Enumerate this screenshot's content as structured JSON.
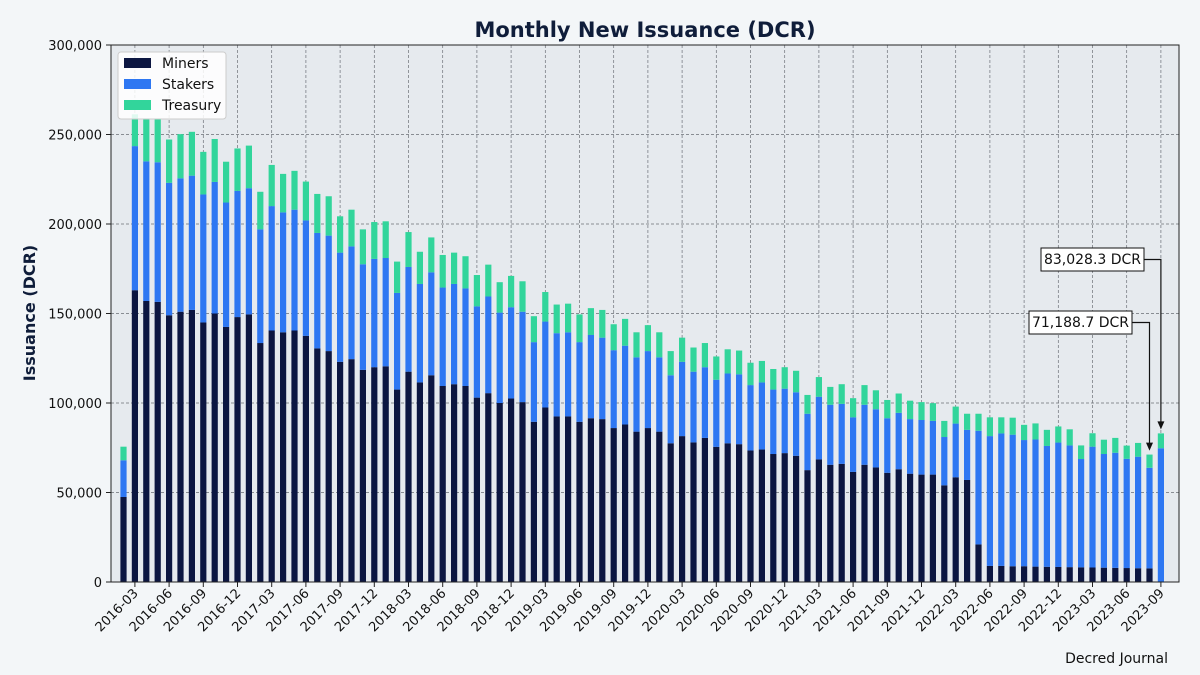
{
  "chart_data": {
    "type": "bar",
    "stacked": true,
    "title": "Monthly New Issuance (DCR)",
    "xlabel": "",
    "ylabel": "Issuance (DCR)",
    "ylim": [
      0,
      300000
    ],
    "yticks": [
      0,
      50000,
      100000,
      150000,
      200000,
      250000,
      300000
    ],
    "ytick_labels": [
      "0",
      "50,000",
      "100,000",
      "150,000",
      "200,000",
      "250,000",
      "300,000"
    ],
    "xtick_labels": [
      "2016-03",
      "2016-06",
      "2016-09",
      "2016-12",
      "2017-03",
      "2017-06",
      "2017-09",
      "2017-12",
      "2018-03",
      "2018-06",
      "2018-09",
      "2018-12",
      "2019-03",
      "2019-06",
      "2019-09",
      "2019-12",
      "2020-03",
      "2020-06",
      "2020-09",
      "2020-12",
      "2021-03",
      "2021-06",
      "2021-09",
      "2021-12",
      "2022-03",
      "2022-06",
      "2022-09",
      "2022-12",
      "2023-03",
      "2023-06",
      "2023-09"
    ],
    "grid": true,
    "legend_position": "top-left",
    "categories": [
      "2016-02",
      "2016-03",
      "2016-04",
      "2016-05",
      "2016-06",
      "2016-07",
      "2016-08",
      "2016-09",
      "2016-10",
      "2016-11",
      "2016-12",
      "2017-01",
      "2017-02",
      "2017-03",
      "2017-04",
      "2017-05",
      "2017-06",
      "2017-07",
      "2017-08",
      "2017-09",
      "2017-10",
      "2017-11",
      "2017-12",
      "2018-01",
      "2018-02",
      "2018-03",
      "2018-04",
      "2018-05",
      "2018-06",
      "2018-07",
      "2018-08",
      "2018-09",
      "2018-10",
      "2018-11",
      "2018-12",
      "2019-01",
      "2019-02",
      "2019-03",
      "2019-04",
      "2019-05",
      "2019-06",
      "2019-07",
      "2019-08",
      "2019-09",
      "2019-10",
      "2019-11",
      "2019-12",
      "2020-01",
      "2020-02",
      "2020-03",
      "2020-04",
      "2020-05",
      "2020-06",
      "2020-07",
      "2020-08",
      "2020-09",
      "2020-10",
      "2020-11",
      "2020-12",
      "2021-01",
      "2021-02",
      "2021-03",
      "2021-04",
      "2021-05",
      "2021-06",
      "2021-07",
      "2021-08",
      "2021-09",
      "2021-10",
      "2021-11",
      "2021-12",
      "2022-01",
      "2022-02",
      "2022-03",
      "2022-04",
      "2022-05",
      "2022-06",
      "2022-07",
      "2022-08",
      "2022-09",
      "2022-10",
      "2022-11",
      "2022-12",
      "2023-01",
      "2023-02",
      "2023-03",
      "2023-04",
      "2023-05",
      "2023-06",
      "2023-07",
      "2023-08",
      "2023-09"
    ],
    "series": [
      {
        "name": "Miners",
        "color": "#0c1641",
        "values": [
          47500,
          163000,
          157000,
          156500,
          149000,
          151000,
          152000,
          145000,
          150000,
          142500,
          148000,
          149500,
          133500,
          140500,
          139500,
          140500,
          137500,
          130500,
          129000,
          123000,
          124500,
          118500,
          120000,
          120500,
          107500,
          117500,
          111500,
          115500,
          109500,
          110500,
          109500,
          103000,
          105500,
          100000,
          102500,
          100500,
          89500,
          97500,
          92500,
          92500,
          89500,
          91500,
          91000,
          86000,
          88000,
          84000,
          86000,
          84000,
          77500,
          81500,
          78000,
          80500,
          75500,
          77500,
          77000,
          73500,
          74000,
          71500,
          72000,
          70500,
          62500,
          68500,
          65500,
          66000,
          61500,
          65500,
          64000,
          61000,
          63000,
          60500,
          60000,
          60000,
          54000,
          58500,
          57000,
          21000,
          9000,
          9000,
          8800,
          8800,
          8600,
          8500,
          8400,
          8300,
          8200,
          8100,
          8000,
          7900,
          7800,
          7700,
          7600,
          0
        ]
      },
      {
        "name": "Stakers",
        "color": "#2e77f2",
        "values": [
          20500,
          80500,
          78000,
          78000,
          74000,
          74500,
          75000,
          71500,
          73500,
          69500,
          70500,
          70500,
          63500,
          69500,
          67000,
          67500,
          64500,
          64500,
          64500,
          61000,
          63000,
          59000,
          60500,
          60500,
          54000,
          58500,
          55000,
          57500,
          55000,
          56000,
          54500,
          51000,
          54000,
          50500,
          51000,
          50500,
          44500,
          48000,
          46500,
          47000,
          44500,
          46500,
          45500,
          43500,
          44000,
          41500,
          43000,
          41500,
          38000,
          41500,
          39500,
          39500,
          37500,
          39000,
          39000,
          36500,
          37500,
          36000,
          36000,
          35500,
          31500,
          35000,
          33500,
          33500,
          30500,
          33500,
          32500,
          30500,
          31500,
          30500,
          30500,
          30000,
          27000,
          30000,
          28000,
          63500,
          72500,
          74000,
          73500,
          70500,
          71000,
          67500,
          69500,
          68000,
          60500,
          67500,
          63500,
          64300,
          61000,
          62300,
          56200,
          74725
        ]
      },
      {
        "name": "Treasury",
        "color": "#32d59b",
        "values": [
          7600,
          17800,
          24000,
          24000,
          24200,
          24700,
          24500,
          23800,
          24000,
          22800,
          23700,
          23800,
          21000,
          23000,
          21500,
          21700,
          21700,
          21800,
          22000,
          20300,
          20500,
          19500,
          20600,
          20500,
          17500,
          19500,
          18000,
          19500,
          18200,
          17500,
          18000,
          17500,
          17800,
          17000,
          17500,
          17000,
          14500,
          16500,
          16000,
          16000,
          15500,
          15000,
          15500,
          14500,
          15000,
          14000,
          14500,
          14000,
          13500,
          13500,
          13500,
          13500,
          13000,
          13500,
          13300,
          12500,
          12000,
          11500,
          12000,
          12000,
          10500,
          11000,
          10000,
          11000,
          10700,
          11000,
          10600,
          10200,
          10800,
          10300,
          10000,
          9900,
          9000,
          9500,
          9000,
          9500,
          10500,
          9000,
          9500,
          8500,
          9000,
          9000,
          9000,
          9000,
          7600,
          7500,
          8000,
          8300,
          7400,
          7700,
          7388,
          8303
        ]
      }
    ],
    "annotations": [
      {
        "text": "83,028.3 DCR",
        "category": "2023-09",
        "value": 83028.3
      },
      {
        "text": "71,188.7 DCR",
        "category": "2023-08",
        "value": 71188.7
      }
    ]
  },
  "footer": {
    "source": "Decred Journal"
  }
}
